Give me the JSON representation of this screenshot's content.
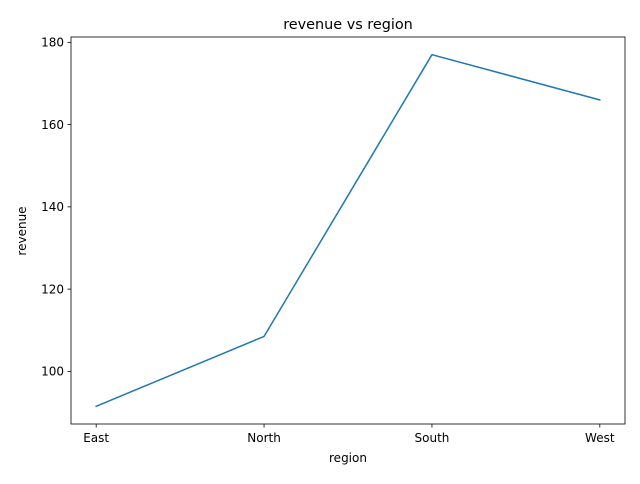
{
  "chart_data": {
    "type": "line",
    "title": "revenue vs region",
    "xlabel": "region",
    "ylabel": "revenue",
    "categories": [
      "East",
      "North",
      "South",
      "West"
    ],
    "series": [
      {
        "values": [
          91.5,
          108.5,
          177.0,
          166.0
        ]
      }
    ],
    "ylim": [
      87.2,
      181.3
    ],
    "yticks": [
      100,
      120,
      140,
      160,
      180
    ],
    "ytick_labels": [
      "100",
      "120",
      "140",
      "160",
      "180"
    ],
    "grid": false,
    "legend": "none",
    "colors": {
      "line": "#1f77b4",
      "axis": "#000000",
      "background": "#ffffff"
    }
  }
}
